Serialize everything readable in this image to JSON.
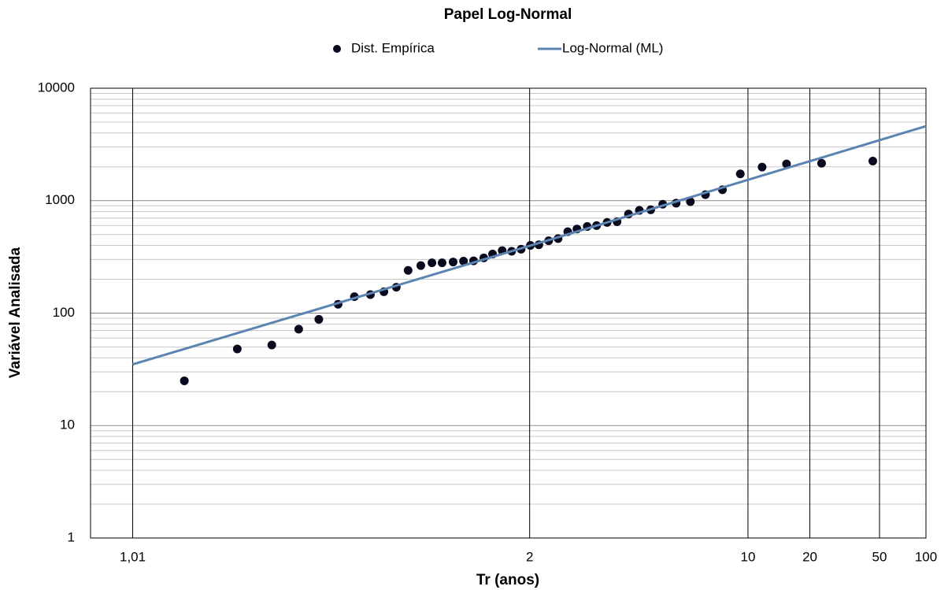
{
  "chart_data": {
    "type": "scatter",
    "title": "Papel Log-Normal",
    "x_label": "Tr (anos)",
    "y_label": "Variável Analisada",
    "xscale": "normal-probability",
    "yscale": "log",
    "xlim": [
      1.005,
      100
    ],
    "ylim": [
      1,
      10000
    ],
    "xticks": [
      {
        "value": 1.01,
        "label": "1,01"
      },
      2,
      10,
      20,
      50,
      100
    ],
    "yticks": [
      1,
      10,
      100,
      1000,
      10000
    ],
    "grid": true,
    "legend": "top",
    "series": [
      {
        "name": "Dist. Empírica",
        "type": "scatter",
        "color": "#0b0b1f",
        "x": [
          1.0218,
          1.045,
          1.0696,
          1.096,
          1.121,
          1.15,
          1.179,
          1.212,
          1.244,
          1.277,
          1.312,
          1.354,
          1.395,
          1.436,
          1.485,
          1.536,
          1.59,
          1.65,
          1.706,
          1.773,
          1.845,
          1.923,
          2.007,
          2.09,
          2.195,
          2.306,
          2.43,
          2.56,
          2.72,
          2.88,
          3.08,
          3.29,
          3.56,
          3.85,
          4.19,
          4.6,
          5.13,
          5.79,
          6.62,
          7.76,
          9.25,
          11.6,
          15.2,
          23.1,
          45.5
        ],
        "values": [
          25,
          48,
          52,
          72,
          88,
          120,
          140,
          146,
          155,
          170,
          240,
          265,
          280,
          280,
          285,
          290,
          292,
          310,
          335,
          360,
          355,
          370,
          400,
          405,
          440,
          460,
          530,
          560,
          590,
          600,
          640,
          650,
          760,
          820,
          830,
          930,
          950,
          980,
          1130,
          1250,
          1730,
          1990,
          2120,
          2150,
          2250
        ]
      },
      {
        "name": "Log-Normal (ML)",
        "type": "line",
        "color": "#5b84b1",
        "x": [
          1.01,
          2,
          100
        ],
        "values": [
          35,
          397,
          4600
        ]
      }
    ]
  }
}
